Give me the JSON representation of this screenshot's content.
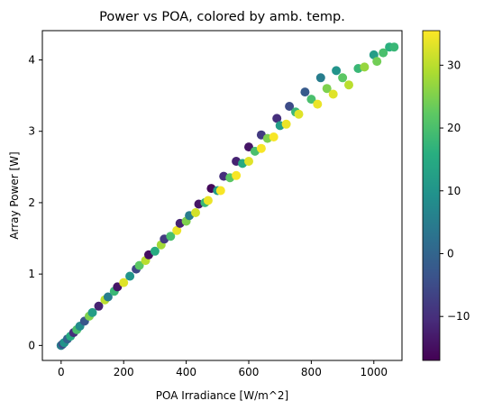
{
  "chart_data": {
    "type": "scatter",
    "title": "Power vs POA, colored by amb. temp.",
    "xlabel": "POA Irradiance [W/m^2]",
    "ylabel": "Array Power [W]",
    "xlim": [
      -60,
      1090
    ],
    "ylim": [
      -0.21,
      4.41
    ],
    "x_ticks": [
      0,
      200,
      400,
      600,
      800,
      1000
    ],
    "y_ticks": [
      0,
      1,
      2,
      3,
      4
    ],
    "grid": false,
    "colorbar": {
      "colormap": "viridis",
      "range": [
        -17,
        35.5
      ],
      "ticks": [
        -10,
        0,
        10,
        20,
        30
      ]
    },
    "series": [
      {
        "name": "",
        "points": [
          {
            "x": 0,
            "y": 0.0,
            "c": 5
          },
          {
            "x": 5,
            "y": 0.02,
            "c": -5
          },
          {
            "x": 10,
            "y": 0.04,
            "c": 10
          },
          {
            "x": 20,
            "y": 0.09,
            "c": 0
          },
          {
            "x": 30,
            "y": 0.13,
            "c": 15
          },
          {
            "x": 40,
            "y": 0.18,
            "c": -10
          },
          {
            "x": 50,
            "y": 0.22,
            "c": 20
          },
          {
            "x": 60,
            "y": 0.27,
            "c": 8
          },
          {
            "x": 75,
            "y": 0.34,
            "c": -3
          },
          {
            "x": 90,
            "y": 0.41,
            "c": 25
          },
          {
            "x": 100,
            "y": 0.46,
            "c": 12
          },
          {
            "x": 120,
            "y": 0.55,
            "c": -12
          },
          {
            "x": 140,
            "y": 0.64,
            "c": 30
          },
          {
            "x": 150,
            "y": 0.68,
            "c": 5
          },
          {
            "x": 170,
            "y": 0.76,
            "c": 18
          },
          {
            "x": 180,
            "y": 0.82,
            "c": -14
          },
          {
            "x": 200,
            "y": 0.88,
            "c": 33
          },
          {
            "x": 220,
            "y": 0.97,
            "c": 10
          },
          {
            "x": 240,
            "y": 1.07,
            "c": -6
          },
          {
            "x": 250,
            "y": 1.12,
            "c": 22
          },
          {
            "x": 270,
            "y": 1.19,
            "c": 30
          },
          {
            "x": 280,
            "y": 1.27,
            "c": -15
          },
          {
            "x": 300,
            "y": 1.32,
            "c": 15
          },
          {
            "x": 320,
            "y": 1.41,
            "c": 28
          },
          {
            "x": 330,
            "y": 1.49,
            "c": -8
          },
          {
            "x": 350,
            "y": 1.53,
            "c": 20
          },
          {
            "x": 370,
            "y": 1.61,
            "c": 34
          },
          {
            "x": 380,
            "y": 1.71,
            "c": -12
          },
          {
            "x": 400,
            "y": 1.74,
            "c": 25
          },
          {
            "x": 410,
            "y": 1.82,
            "c": 5
          },
          {
            "x": 430,
            "y": 1.86,
            "c": 32
          },
          {
            "x": 440,
            "y": 1.98,
            "c": -14
          },
          {
            "x": 460,
            "y": 2.0,
            "c": 18
          },
          {
            "x": 470,
            "y": 2.03,
            "c": 34
          },
          {
            "x": 480,
            "y": 2.2,
            "c": -16
          },
          {
            "x": 500,
            "y": 2.17,
            "c": 12
          },
          {
            "x": 510,
            "y": 2.17,
            "c": 35
          },
          {
            "x": 520,
            "y": 2.37,
            "c": -10
          },
          {
            "x": 540,
            "y": 2.35,
            "c": 22
          },
          {
            "x": 560,
            "y": 2.38,
            "c": 35
          },
          {
            "x": 560,
            "y": 2.58,
            "c": -12
          },
          {
            "x": 580,
            "y": 2.55,
            "c": 15
          },
          {
            "x": 600,
            "y": 2.58,
            "c": 33
          },
          {
            "x": 600,
            "y": 2.78,
            "c": -14
          },
          {
            "x": 620,
            "y": 2.72,
            "c": 20
          },
          {
            "x": 640,
            "y": 2.76,
            "c": 35
          },
          {
            "x": 640,
            "y": 2.95,
            "c": -8
          },
          {
            "x": 660,
            "y": 2.9,
            "c": 25
          },
          {
            "x": 680,
            "y": 2.92,
            "c": 35
          },
          {
            "x": 690,
            "y": 3.18,
            "c": -10
          },
          {
            "x": 700,
            "y": 3.08,
            "c": 12
          },
          {
            "x": 720,
            "y": 3.1,
            "c": 34
          },
          {
            "x": 730,
            "y": 3.35,
            "c": -5
          },
          {
            "x": 750,
            "y": 3.27,
            "c": 18
          },
          {
            "x": 760,
            "y": 3.24,
            "c": 33
          },
          {
            "x": 780,
            "y": 3.55,
            "c": -2
          },
          {
            "x": 800,
            "y": 3.45,
            "c": 20
          },
          {
            "x": 820,
            "y": 3.38,
            "c": 34
          },
          {
            "x": 830,
            "y": 3.75,
            "c": 5
          },
          {
            "x": 850,
            "y": 3.6,
            "c": 25
          },
          {
            "x": 870,
            "y": 3.52,
            "c": 33
          },
          {
            "x": 880,
            "y": 3.85,
            "c": 10
          },
          {
            "x": 900,
            "y": 3.75,
            "c": 22
          },
          {
            "x": 920,
            "y": 3.65,
            "c": 30
          },
          {
            "x": 950,
            "y": 3.88,
            "c": 18
          },
          {
            "x": 970,
            "y": 3.9,
            "c": 27
          },
          {
            "x": 1000,
            "y": 4.07,
            "c": 12
          },
          {
            "x": 1010,
            "y": 3.98,
            "c": 24
          },
          {
            "x": 1030,
            "y": 4.1,
            "c": 20
          },
          {
            "x": 1050,
            "y": 4.18,
            "c": 16
          },
          {
            "x": 1065,
            "y": 4.18,
            "c": 18
          }
        ]
      }
    ]
  }
}
